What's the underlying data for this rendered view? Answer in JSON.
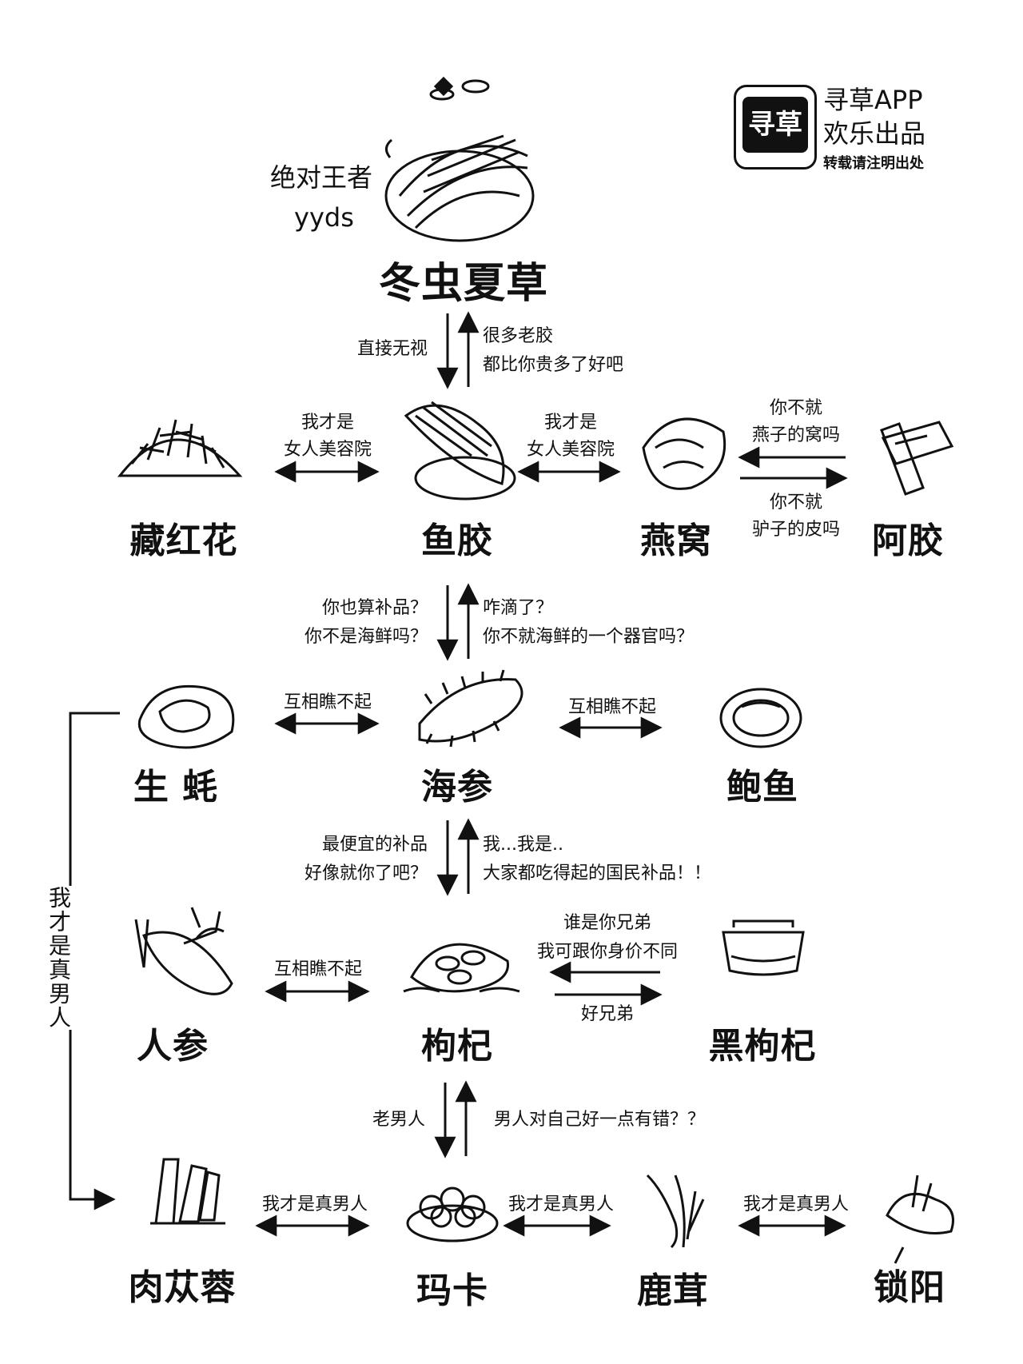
{
  "brand": {
    "logo_text": "寻草",
    "line1": "寻草APP",
    "line2": "欢乐出品",
    "line3": "转载请注明出处"
  },
  "top": {
    "slogan1": "绝对王者",
    "slogan2": "yyds",
    "name": "冬虫夏草"
  },
  "row1": {
    "down_label": "直接无视",
    "up_label1": "很多老胶",
    "up_label2": "都比你贵多了好吧",
    "left": "藏红花",
    "center": "鱼胶",
    "right": "燕窝",
    "far_right": "阿胶",
    "left_link1": "我才是",
    "left_link2": "女人美容院",
    "right_link1": "我才是",
    "right_link2": "女人美容院",
    "far_top1": "你不就",
    "far_top2": "燕子的窝吗",
    "far_bottom1": "你不就",
    "far_bottom2": "驴子的皮吗"
  },
  "row2": {
    "down_label1": "你也算补品？",
    "down_label2": "你不是海鲜吗？",
    "up_label1": "咋滴了？",
    "up_label2": "你不就海鲜的一个器官吗？",
    "left": "生 蚝",
    "center": "海参",
    "right": "鲍鱼",
    "left_link": "互相瞧不起",
    "right_link": "互相瞧不起"
  },
  "row3": {
    "down_label1": "最便宜的补品",
    "down_label2": "好像就你了吧？",
    "up_label1": "我...我是..",
    "up_label2": "大家都吃得起的国民补品！！",
    "left": "人参",
    "center": "枸杞",
    "right": "黑枸杞",
    "left_link": "互相瞧不起",
    "right_top1": "谁是你兄弟",
    "right_top2": "我可跟你身价不同",
    "right_bottom": "好兄弟"
  },
  "row4": {
    "down_label": "老男人",
    "up_label": "男人对自己好一点有错？？",
    "n1": "肉苁蓉",
    "n2": "玛卡",
    "n3": "鹿茸",
    "n4": "锁阳",
    "link1": "我才是真男人",
    "link2": "我才是真男人",
    "link3": "我才是真男人"
  },
  "side_label": "我才是真男人"
}
